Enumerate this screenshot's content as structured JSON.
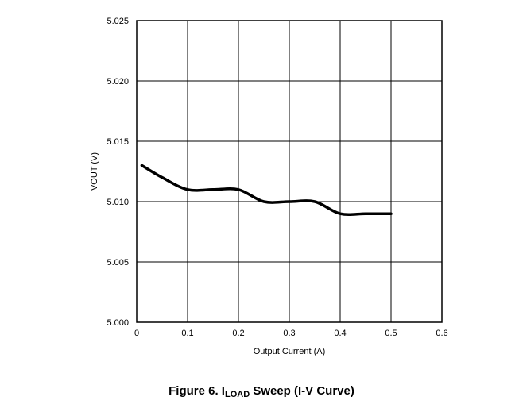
{
  "chart_data": {
    "type": "line",
    "title": "",
    "xlabel": "Output Current (A)",
    "ylabel": "VOUT (V)",
    "xlim": [
      0,
      0.6
    ],
    "ylim": [
      5.0,
      5.025
    ],
    "x_ticks": [
      "0",
      "0.1",
      "0.2",
      "0.3",
      "0.4",
      "0.5",
      "0.6"
    ],
    "y_ticks": [
      "5.000",
      "5.005",
      "5.010",
      "5.015",
      "5.020",
      "5.025"
    ],
    "grid": true,
    "legend": "none",
    "series": [
      {
        "color": "#000000",
        "x": [
          0.01,
          0.05,
          0.1,
          0.15,
          0.2,
          0.25,
          0.3,
          0.35,
          0.4,
          0.45,
          0.5
        ],
        "y": [
          5.013,
          5.012,
          5.011,
          5.011,
          5.011,
          5.01,
          5.01,
          5.01,
          5.009,
          5.009,
          5.009
        ]
      }
    ]
  },
  "caption": {
    "prefix": "Figure 6. I",
    "subscript": "LOAD",
    "suffix": " Sweep (I-V Curve)"
  }
}
